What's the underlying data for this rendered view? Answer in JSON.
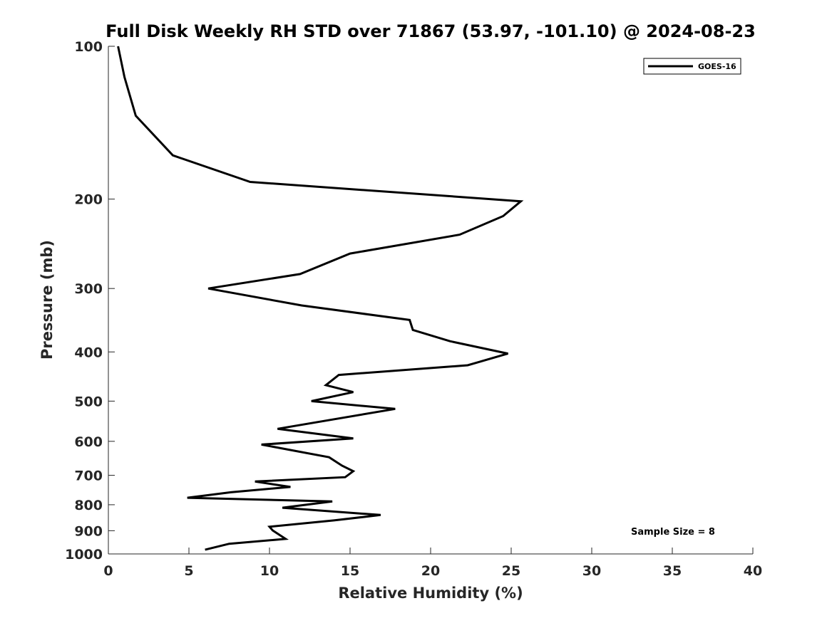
{
  "chart_data": {
    "type": "line",
    "title": "Full Disk Weekly RH STD over 71867 (53.97, -101.10) @ 2024-08-23",
    "xlabel": "Relative Humidity (%)",
    "ylabel": "Pressure (mb)",
    "xlim": [
      0,
      40
    ],
    "ylim": [
      100,
      1000
    ],
    "y_scale": "log",
    "y_reversed": true,
    "x_ticks": [
      0,
      5,
      10,
      15,
      20,
      25,
      30,
      35,
      40
    ],
    "y_ticks": [
      100,
      200,
      300,
      400,
      500,
      600,
      700,
      800,
      900,
      1000
    ],
    "grid": false,
    "legend_position": "top-right",
    "annotation": "Sample Size = 8",
    "series": [
      {
        "name": "GOES-16",
        "color": "#000000",
        "x": [
          0.6,
          1.0,
          1.7,
          4.0,
          8.8,
          25.6,
          24.5,
          21.8,
          15.0,
          11.9,
          6.2,
          12.0,
          18.7,
          18.9,
          21.2,
          24.8,
          22.3,
          14.3,
          13.5,
          15.2,
          12.6,
          17.8,
          10.5,
          15.2,
          9.5,
          13.7,
          14.5,
          15.2,
          14.7,
          9.1,
          11.3,
          7.6,
          4.9,
          13.9,
          10.8,
          16.9,
          14.0,
          10.0,
          10.2,
          11.0,
          7.5,
          6.0
        ],
        "y": [
          100,
          115,
          137,
          164,
          185,
          202,
          216,
          235,
          256,
          281,
          300,
          324,
          346,
          362,
          381,
          403,
          425,
          444,
          465,
          480,
          500,
          518,
          567,
          592,
          609,
          645,
          670,
          687,
          706,
          720,
          738,
          756,
          775,
          788,
          811,
          838,
          859,
          884,
          899,
          934,
          955,
          981
        ]
      }
    ]
  }
}
